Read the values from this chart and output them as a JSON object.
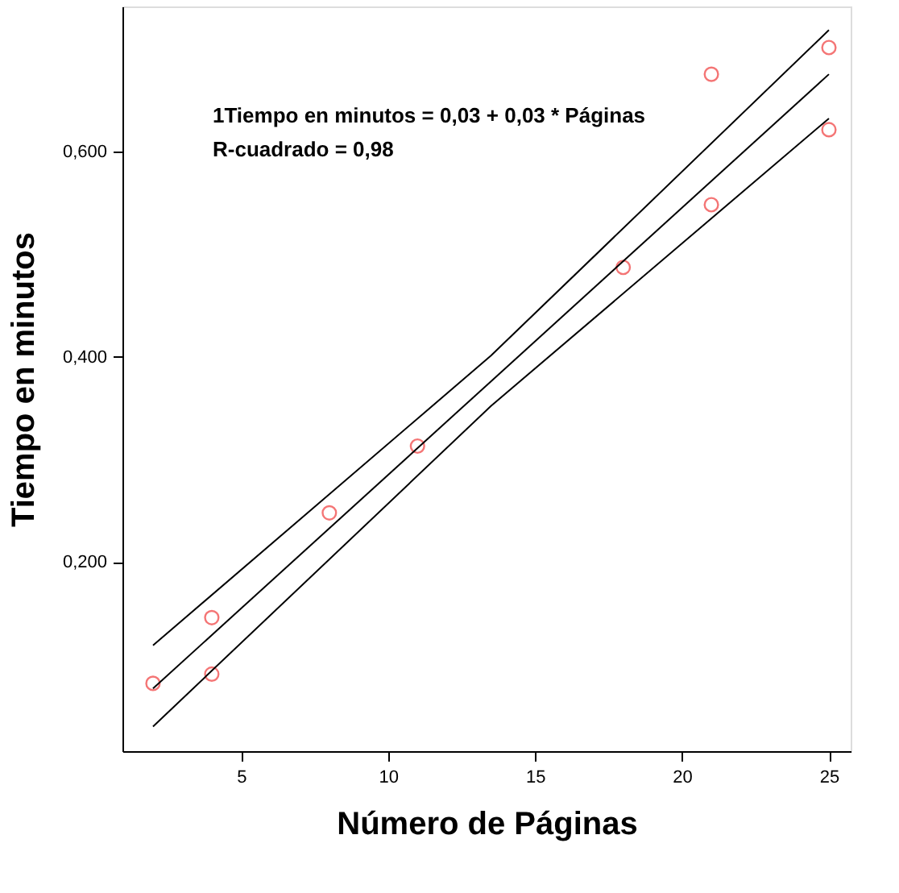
{
  "chart_data": {
    "type": "scatter",
    "xlabel": "Número de Páginas",
    "ylabel": "Tiempo en minutos",
    "annotations": [
      "1Tiempo en minutos = 0,03 + 0,03 * Páginas",
      "R-cuadrado = 0,98"
    ],
    "series": [
      {
        "color": "#f03c3c",
        "marker": "circle",
        "x": [
          2,
          4,
          4,
          8,
          11,
          18,
          21,
          21,
          25,
          25
        ],
        "values": [
          0.082,
          0.146,
          0.091,
          0.248,
          0.313,
          0.487,
          0.548,
          0.675,
          0.701,
          0.621
        ]
      },
      {
        "type": "line",
        "color": "#000000",
        "marker": "none",
        "line_style": "solid",
        "x": [
          2,
          13.5,
          25
        ],
        "values": [
          0.077,
          0.376,
          0.675
        ]
      },
      {
        "type": "line",
        "color": "#000000",
        "marker": "none",
        "line_style": "solid",
        "x": [
          2,
          13.5,
          25
        ],
        "values": [
          0.119,
          0.401,
          0.718
        ]
      },
      {
        "type": "line",
        "color": "#000000",
        "marker": "none",
        "line_style": "solid",
        "x": [
          2,
          13.5,
          25
        ],
        "values": [
          0.04,
          0.352,
          0.632
        ]
      }
    ],
    "xlim": [
      0.96,
      25.74
    ],
    "xticks": [
      5,
      10,
      15,
      20,
      25
    ],
    "ylim": [
      0.016,
      0.741
    ],
    "yticks": [
      {
        "value": 0.2,
        "label": "0,200"
      },
      {
        "value": 0.4,
        "label": "0,400"
      },
      {
        "value": 0.6,
        "label": "0,600"
      }
    ],
    "grid": false
  }
}
